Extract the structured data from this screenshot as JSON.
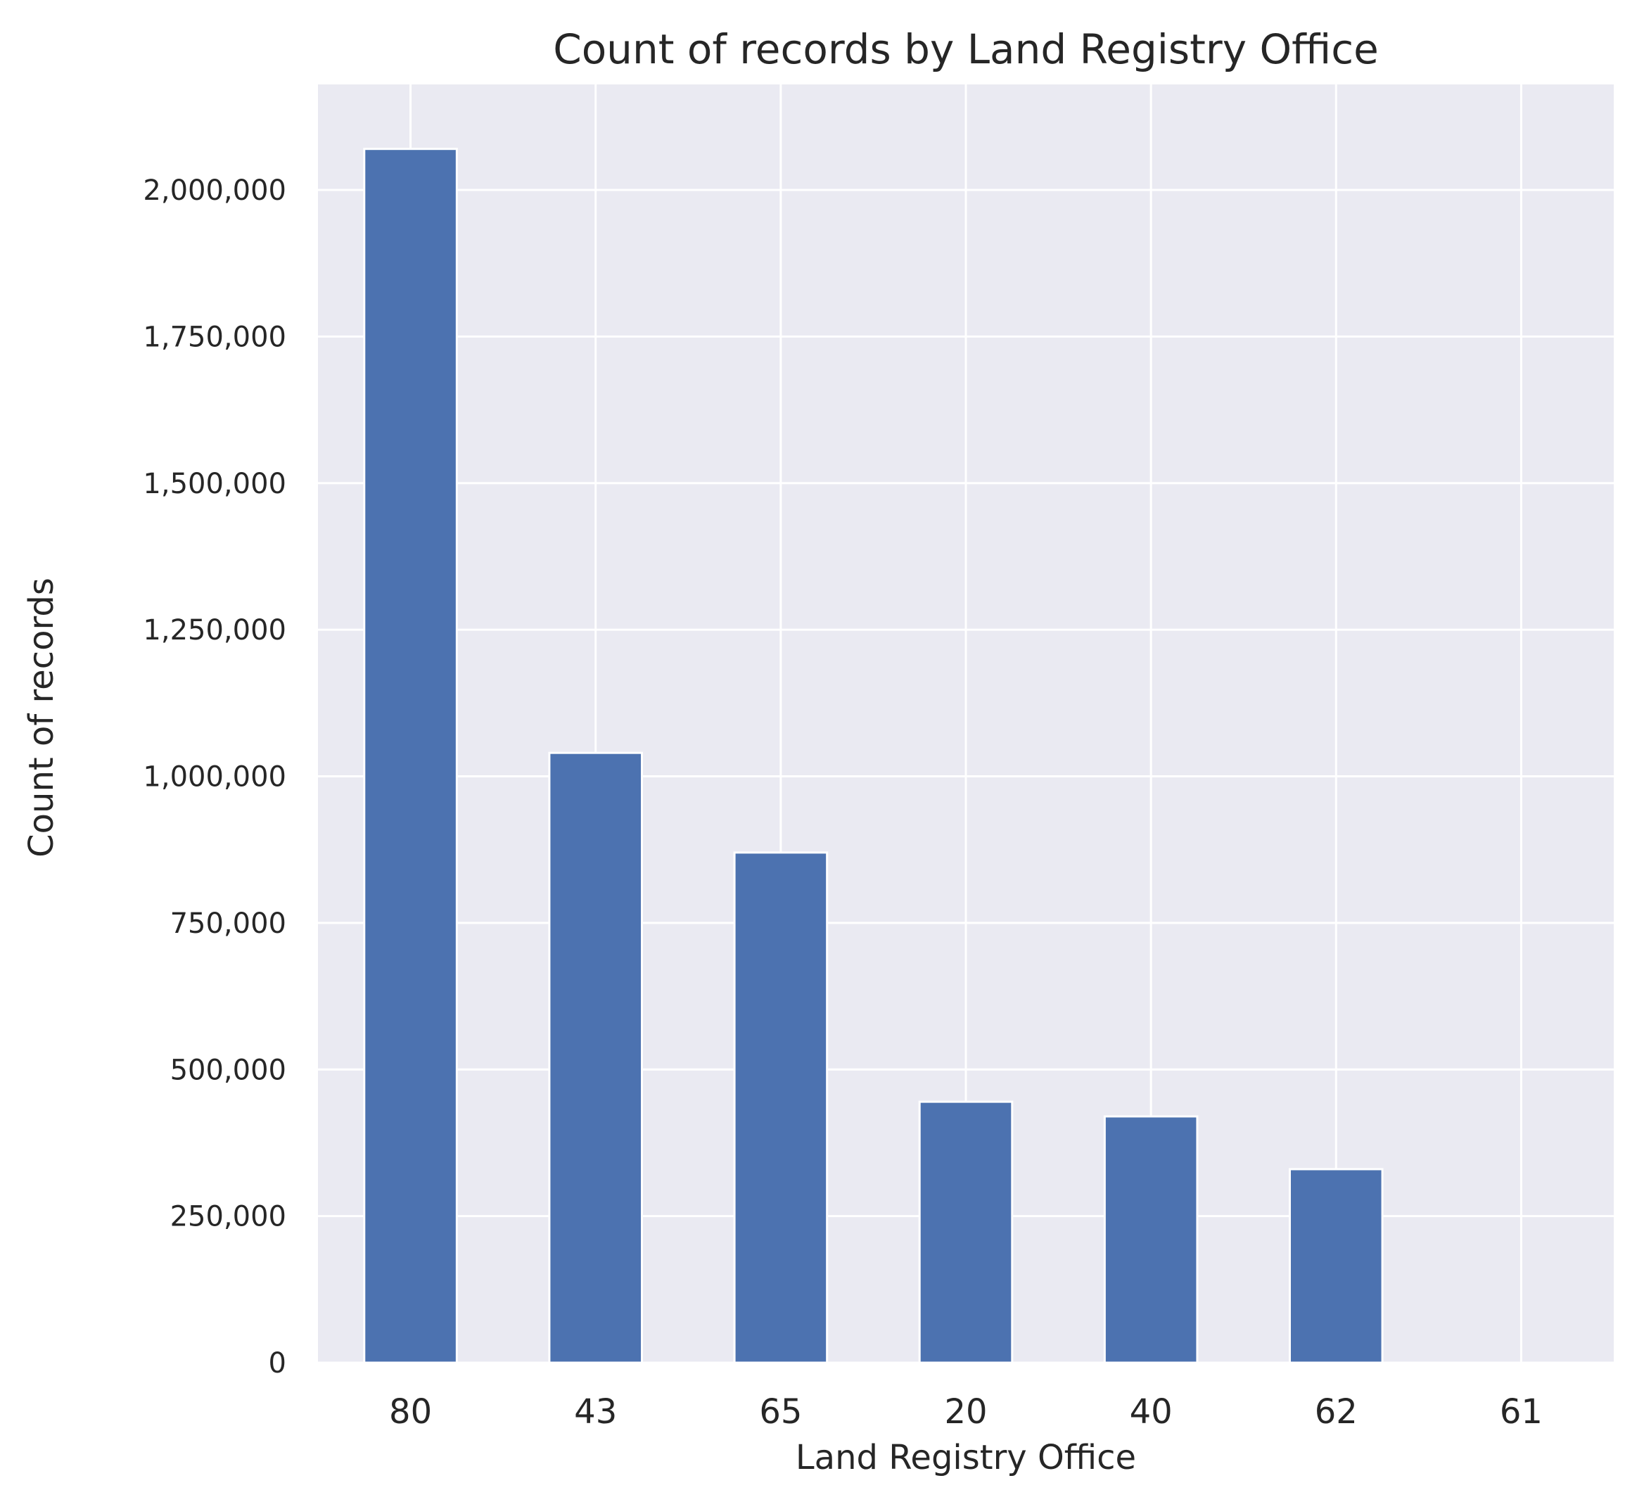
{
  "chart_data": {
    "type": "bar",
    "title": "Count of records by Land Registry Office",
    "xlabel": "Land Registry Office",
    "ylabel": "Count of records",
    "categories": [
      "80",
      "43",
      "65",
      "20",
      "40",
      "62",
      "61"
    ],
    "values": [
      2070000,
      1040000,
      870000,
      445000,
      420000,
      330000,
      0
    ],
    "ylim": [
      0,
      2180000
    ],
    "yticks": [
      0,
      250000,
      500000,
      750000,
      1000000,
      1250000,
      1500000,
      1750000,
      2000000
    ],
    "ytick_labels": [
      "0",
      "250,000",
      "500,000",
      "750,000",
      "1,000,000",
      "1,250,000",
      "1,500,000",
      "1,750,000",
      "2,000,000"
    ],
    "grid": true,
    "legend": "none",
    "colors": {
      "bar": "#4c72b0",
      "plot_background": "#eaeaf2",
      "grid": "#ffffff",
      "text": "#262626"
    }
  }
}
